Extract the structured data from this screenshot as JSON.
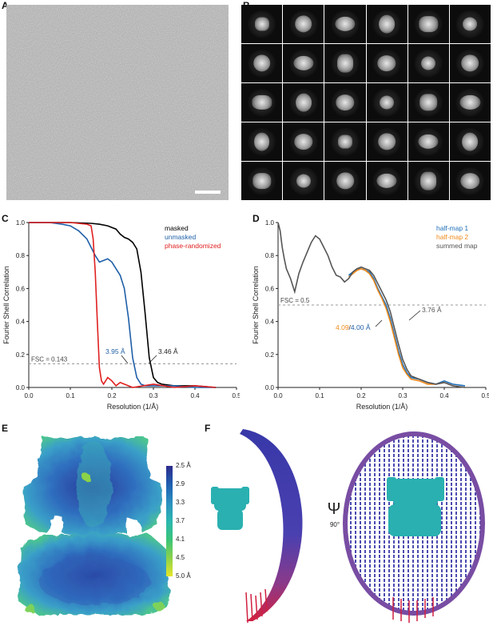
{
  "panels": {
    "a": "A",
    "b": "B",
    "c": "C",
    "d": "D",
    "e": "E",
    "f": "F"
  },
  "chart_data": [
    {
      "type": "line",
      "panel": "C",
      "xlabel": "Resolution (1/Å)",
      "ylabel": "Fourier Shell Correlation",
      "xlim": [
        0,
        0.5
      ],
      "ylim": [
        0,
        1.0
      ],
      "x_ticks": [
        "0.0",
        "0.1",
        "0.2",
        "0.3",
        "0.4",
        "0.5"
      ],
      "y_ticks": [
        "0.0",
        "0.2",
        "0.4",
        "0.6",
        "0.8",
        "1.0"
      ],
      "threshold": {
        "value": 0.143,
        "label": "FSC = 0.143"
      },
      "annotations": [
        {
          "text": "3.95 Å",
          "color": "#1f5fa8"
        },
        {
          "text": "3.46 Å",
          "color": "#222222"
        }
      ],
      "legend_position": "top-right",
      "series": [
        {
          "name": "masked",
          "color": "#000000",
          "x": [
            0,
            0.1,
            0.15,
            0.17,
            0.19,
            0.21,
            0.22,
            0.23,
            0.24,
            0.25,
            0.26,
            0.27,
            0.28,
            0.29,
            0.3,
            0.31,
            0.32,
            0.35,
            0.4,
            0.45
          ],
          "y": [
            1,
            1,
            0.995,
            0.99,
            0.98,
            0.96,
            0.93,
            0.91,
            0.9,
            0.88,
            0.84,
            0.7,
            0.45,
            0.18,
            0.06,
            0.03,
            0.02,
            0.01,
            0.01,
            0.0
          ]
        },
        {
          "name": "unmasked",
          "color": "#1f5fa8",
          "x": [
            0,
            0.05,
            0.08,
            0.1,
            0.12,
            0.14,
            0.16,
            0.17,
            0.18,
            0.19,
            0.2,
            0.21,
            0.22,
            0.23,
            0.24,
            0.25,
            0.26,
            0.27,
            0.28,
            0.3,
            0.35,
            0.4,
            0.45
          ],
          "y": [
            1,
            1,
            0.99,
            0.98,
            0.95,
            0.9,
            0.8,
            0.76,
            0.77,
            0.78,
            0.76,
            0.72,
            0.68,
            0.6,
            0.42,
            0.18,
            0.06,
            0.02,
            0.01,
            0.01,
            0.01,
            0.0,
            0.0
          ]
        },
        {
          "name": "phase-randomized",
          "color": "#e02020",
          "x": [
            0,
            0.1,
            0.14,
            0.15,
            0.155,
            0.16,
            0.165,
            0.17,
            0.175,
            0.18,
            0.19,
            0.2,
            0.21,
            0.22,
            0.23,
            0.25,
            0.3,
            0.35,
            0.4,
            0.45
          ],
          "y": [
            1,
            1,
            0.99,
            0.98,
            0.9,
            0.7,
            0.4,
            0.12,
            0.04,
            0.02,
            0.06,
            0.04,
            0.01,
            0.03,
            0.02,
            0.0,
            0.02,
            0.0,
            0.01,
            0.0
          ]
        }
      ]
    },
    {
      "type": "line",
      "panel": "D",
      "xlabel": "Resolution (1/Å)",
      "ylabel": "Fourier Shell Correlation",
      "xlim": [
        0,
        0.5
      ],
      "ylim": [
        0,
        1.0
      ],
      "x_ticks": [
        "0.0",
        "0.1",
        "0.2",
        "0.3",
        "0.4",
        "0.5"
      ],
      "y_ticks": [
        "0.0",
        "0.2",
        "0.4",
        "0.6",
        "0.8",
        "1.0"
      ],
      "threshold": {
        "value": 0.5,
        "label": "FSC = 0.5"
      },
      "annotations": [
        {
          "text": "3.76 Å",
          "color": "#555555"
        },
        {
          "text_parts": [
            {
              "text": "4.09",
              "color": "#f08a1c"
            },
            {
              "text": "/",
              "color": "#222222"
            },
            {
              "text": "4.00 Å",
              "color": "#1f5fa8"
            }
          ]
        }
      ],
      "legend_position": "top-right",
      "series": [
        {
          "name": "half-map 1",
          "color": "#1f6fb8",
          "x": [
            0.17,
            0.19,
            0.2,
            0.21,
            0.22,
            0.23,
            0.24,
            0.25,
            0.26,
            0.27,
            0.28,
            0.29,
            0.3,
            0.31,
            0.32,
            0.34,
            0.36,
            0.38,
            0.4,
            0.42,
            0.45
          ],
          "y": [
            0.68,
            0.72,
            0.72,
            0.71,
            0.7,
            0.66,
            0.6,
            0.55,
            0.5,
            0.42,
            0.32,
            0.22,
            0.14,
            0.09,
            0.06,
            0.05,
            0.03,
            0.02,
            0.04,
            0.02,
            0.01
          ]
        },
        {
          "name": "half-map 2",
          "color": "#f08a1c",
          "x": [
            0.17,
            0.19,
            0.2,
            0.21,
            0.22,
            0.23,
            0.24,
            0.25,
            0.26,
            0.27,
            0.28,
            0.29,
            0.3,
            0.31,
            0.32,
            0.34,
            0.36,
            0.38,
            0.4,
            0.42,
            0.45
          ],
          "y": [
            0.67,
            0.71,
            0.72,
            0.71,
            0.69,
            0.65,
            0.59,
            0.54,
            0.48,
            0.4,
            0.3,
            0.2,
            0.12,
            0.08,
            0.05,
            0.04,
            0.02,
            0.02,
            0.03,
            0.01,
            0.0
          ]
        },
        {
          "name": "summed map",
          "color": "#555555",
          "x": [
            0,
            0.005,
            0.01,
            0.015,
            0.02,
            0.03,
            0.04,
            0.05,
            0.06,
            0.07,
            0.08,
            0.09,
            0.1,
            0.11,
            0.12,
            0.13,
            0.14,
            0.15,
            0.16,
            0.17,
            0.18,
            0.19,
            0.2,
            0.21,
            0.22,
            0.23,
            0.24,
            0.25,
            0.26,
            0.27,
            0.28,
            0.29,
            0.3,
            0.31,
            0.32,
            0.34,
            0.36,
            0.38,
            0.4,
            0.42,
            0.45
          ],
          "y": [
            1.0,
            0.95,
            0.85,
            0.78,
            0.72,
            0.66,
            0.58,
            0.69,
            0.76,
            0.82,
            0.88,
            0.92,
            0.9,
            0.85,
            0.8,
            0.73,
            0.68,
            0.67,
            0.64,
            0.66,
            0.7,
            0.72,
            0.73,
            0.72,
            0.71,
            0.68,
            0.63,
            0.58,
            0.53,
            0.46,
            0.36,
            0.26,
            0.17,
            0.11,
            0.07,
            0.05,
            0.03,
            0.02,
            0.03,
            0.01,
            0.0
          ]
        }
      ]
    }
  ],
  "colorbar": {
    "labels": [
      "2.5 Å",
      "2.9",
      "3.3",
      "3.7",
      "4.1",
      "4.5",
      "5.0 Å"
    ],
    "colors": [
      "#2c2a8c",
      "#1f5fb0",
      "#2b8fc0",
      "#2bb7b0",
      "#3ac47a",
      "#8cd24a",
      "#e6e628"
    ]
  },
  "panel_f": {
    "rotation_symbol": "Ψ",
    "rotation_label": "90°"
  }
}
